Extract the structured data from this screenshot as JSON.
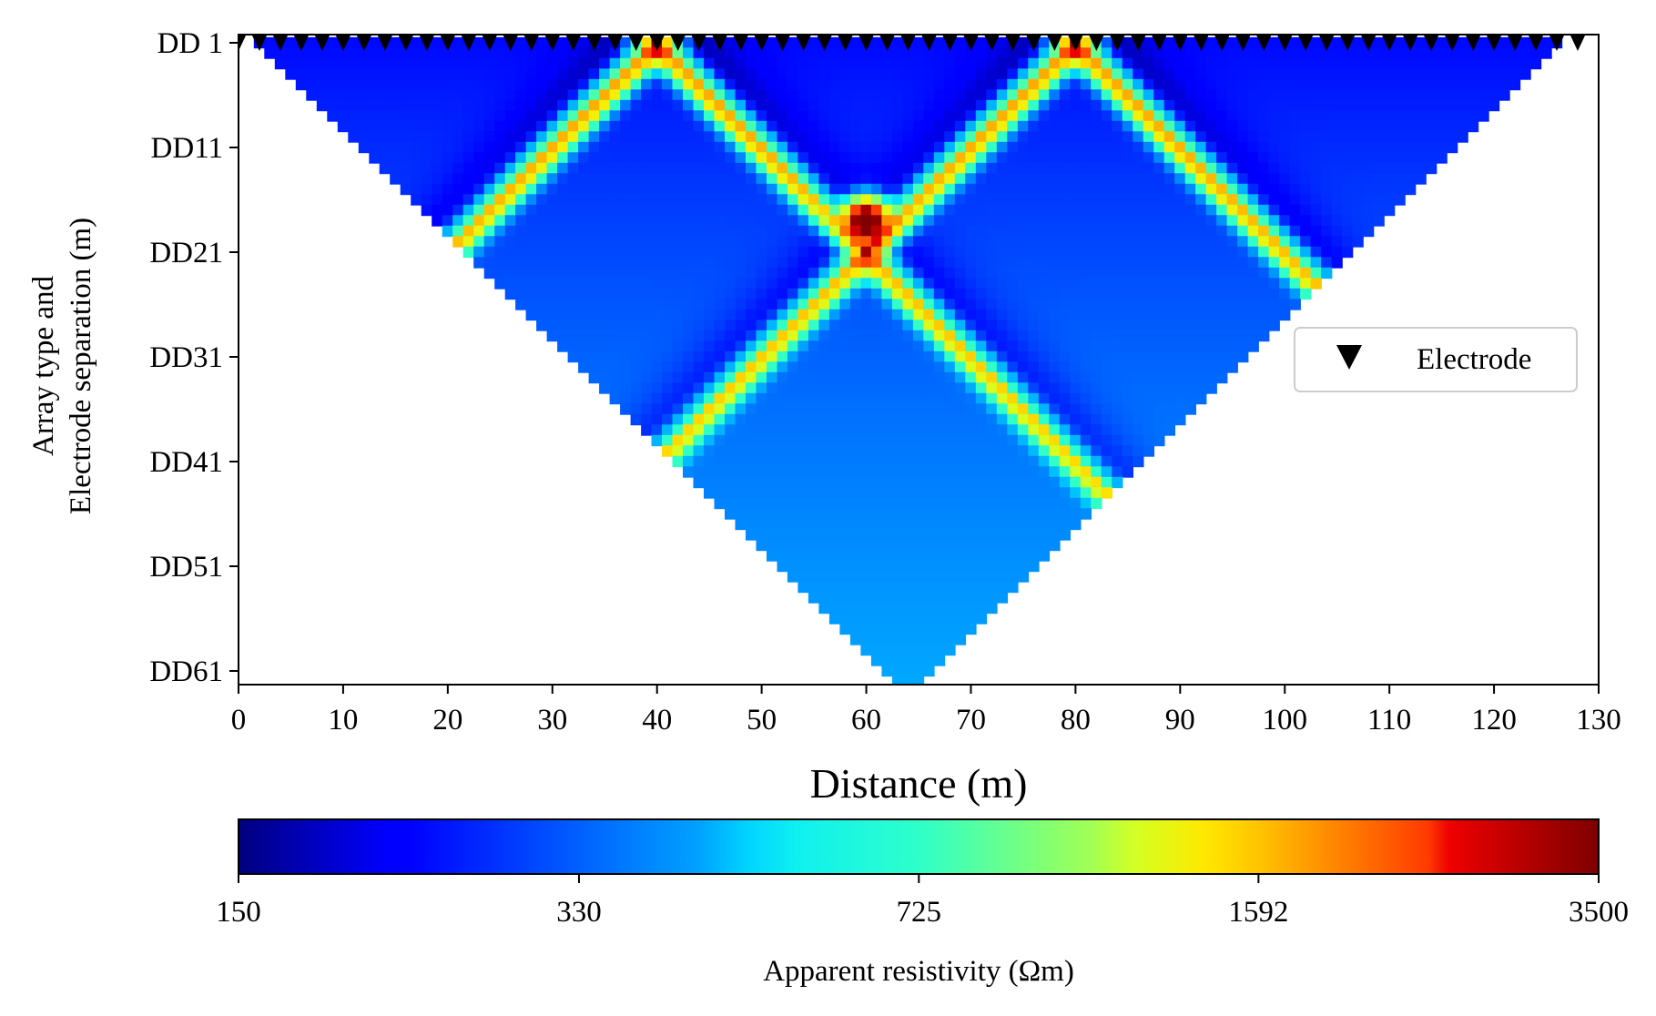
{
  "chart_data": {
    "type": "heatmap",
    "title": "",
    "xlabel": "Distance (m)",
    "ylabel_lines": [
      "Array type and",
      "Electrode separation (m)"
    ],
    "xlim": [
      0,
      130
    ],
    "x_ticks": [
      0,
      10,
      20,
      30,
      40,
      50,
      60,
      70,
      80,
      90,
      100,
      110,
      120,
      130
    ],
    "y_range": [
      1,
      62
    ],
    "y_ticks": [
      {
        "value": 1,
        "label": "DD 1"
      },
      {
        "value": 11,
        "label": "DD11"
      },
      {
        "value": 21,
        "label": "DD21"
      },
      {
        "value": 31,
        "label": "DD31"
      },
      {
        "value": 41,
        "label": "DD41"
      },
      {
        "value": 51,
        "label": "DD51"
      },
      {
        "value": 61,
        "label": "DD61"
      }
    ],
    "grid": false,
    "colorscale": "jet",
    "color_scale_type": "log",
    "colorbar": {
      "label": "Apparent resistivity (Ωm)",
      "min": 150,
      "max": 3500,
      "ticks": [
        150,
        330,
        725,
        1592,
        3500
      ]
    },
    "electrodes": {
      "legend_label": "Electrode",
      "legend_position": "right",
      "first_x": 0,
      "last_x": 128,
      "spacing": 2,
      "marker": "black-down-triangle"
    },
    "pseudosection": {
      "background_ohm_m": 250,
      "deep_background_ohm_m": 400,
      "anomalies": [
        {
          "x": 40,
          "ohm_m": 1500
        },
        {
          "x": 80,
          "ohm_m": 1500
        }
      ],
      "crossing": {
        "x": 60,
        "level": 18,
        "ohm_m": 3300
      }
    }
  }
}
